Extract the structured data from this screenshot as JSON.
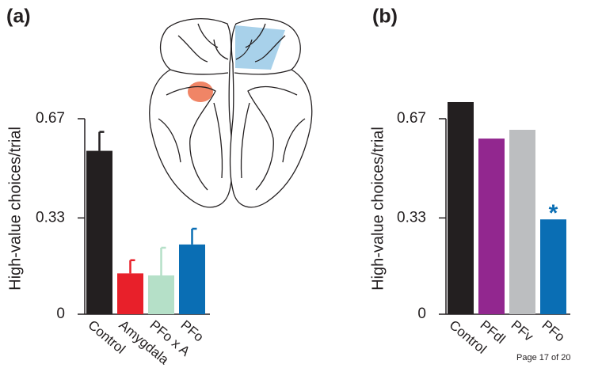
{
  "footer": "Page 17 of 20",
  "chart_data": [
    {
      "type": "bar",
      "label": "(a)",
      "ylabel": "High-value choices/trial",
      "categories": [
        "Control",
        "Amygdala",
        "PFo x A",
        "PFo"
      ],
      "values": [
        0.56,
        0.14,
        0.133,
        0.239
      ],
      "errors": [
        0.065,
        0.045,
        0.095,
        0.054
      ],
      "colors": [
        "#231f20",
        "#e8202a",
        "#b5e0c8",
        "#0a6eb4"
      ],
      "ylim": [
        0,
        0.67
      ],
      "yticks": [
        0,
        0.33,
        0.67
      ],
      "grid": false
    },
    {
      "type": "bar",
      "label": "(b)",
      "ylabel": "High-value choices/trial",
      "categories": [
        "Control",
        "PFdl",
        "PFv",
        "PFo"
      ],
      "values": [
        0.727,
        0.602,
        0.632,
        0.325
      ],
      "colors": [
        "#231f20",
        "#92278f",
        "#bcbec0",
        "#0a6eb4"
      ],
      "annotation": {
        "text": "*",
        "category": "PFo"
      },
      "ylim": [
        0,
        0.67
      ],
      "yticks": [
        0,
        0.33,
        0.67
      ],
      "grid": false
    }
  ]
}
